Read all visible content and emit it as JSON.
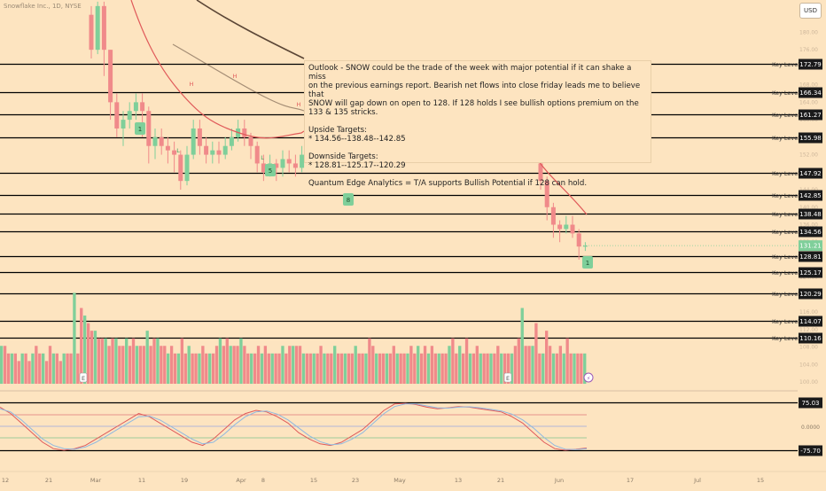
{
  "header": {
    "ticker": "Snowflake Inc., 1D, NYSE",
    "currency_button": "USD"
  },
  "note": {
    "line1": "Outlook - SNOW could be the trade of the week with major potential if it can shake a miss",
    "line2": "on the previous earnings report. Bearish net flows into close friday leads me to believe that",
    "line3": "SNOW will gap down on open to 128. If 128 holds I see bullish options premium on the 133 & 135 stricks.",
    "upside_title": "Upside Targets:",
    "upside_values": "* 134.56--138.48--142.85",
    "downside_title": "Downside Targets:",
    "downside_values": "* 128.81--125.17--120.29",
    "footer": "Quantum Edge Analytics = T/A supports Bullish Potential if 128 can hold."
  },
  "colors": {
    "background": "#fde4c0",
    "up_candle": "#7fcf9a",
    "down_candle": "#f08a8a",
    "ma_fast": "#e05a5a",
    "ma_slow": "#5b4636",
    "key_level_line": "#000000",
    "label_box": "#1a1a1a",
    "last_price_box": "#7fcf9a",
    "osc_upper_band": "#e07a7a",
    "osc_lower_band": "#7fc48e",
    "osc_mid": "#9aa7e0",
    "osc_line_a": "#e05a5a",
    "osc_line_b": "#8fb8e0"
  },
  "chart_data": [
    {
      "type": "candlestick",
      "title": "Snowflake Inc., 1D, NYSE",
      "price_axis": {
        "visible_ticks": [
          180.0,
          176.0,
          168.0,
          164.0,
          160.0,
          152.0,
          148.0,
          144.0,
          140.0,
          136.0,
          132.0,
          124.0,
          116.0,
          112.0,
          108.0,
          104.0,
          100.0
        ],
        "ylim": [
          98,
          186
        ]
      },
      "time_axis": {
        "tick_labels": [
          "12",
          "21",
          "Mar",
          "11",
          "19",
          "Apr",
          "8",
          "15",
          "23",
          "May",
          "13",
          "21",
          "Jun",
          "17",
          "Jul",
          "15"
        ]
      },
      "key_levels": [
        {
          "label": "Key Level",
          "value": 172.79
        },
        {
          "label": "Key Level",
          "value": 166.34
        },
        {
          "label": "Key Level",
          "value": 161.27
        },
        {
          "label": "Key Level",
          "value": 155.98
        },
        {
          "label": "Key Level",
          "value": 147.92
        },
        {
          "label": "Key Level",
          "value": 142.85
        },
        {
          "label": "Key Level",
          "value": 138.48
        },
        {
          "label": "Key Level",
          "value": 134.56
        },
        {
          "label": "Key Level",
          "value": 128.81
        },
        {
          "label": "Key Level",
          "value": 125.17
        },
        {
          "label": "Key Level",
          "value": 120.29
        },
        {
          "label": "Key Level",
          "value": 114.07
        },
        {
          "label": "Key Level",
          "value": 110.16
        }
      ],
      "last_price": 131.21,
      "candles_visible_segments": {
        "feb_to_apr": [
          {
            "o": 184,
            "c": 176,
            "h": 186,
            "l": 174
          },
          {
            "o": 176,
            "c": 186,
            "h": 187,
            "l": 175
          },
          {
            "o": 186,
            "c": 176,
            "h": 187,
            "l": 170
          },
          {
            "o": 176,
            "c": 164,
            "h": 176,
            "l": 160
          },
          {
            "o": 164,
            "c": 158,
            "h": 166,
            "l": 156
          },
          {
            "o": 158,
            "c": 160,
            "h": 162,
            "l": 154
          },
          {
            "o": 160,
            "c": 162,
            "h": 164,
            "l": 158
          },
          {
            "o": 162,
            "c": 164,
            "h": 166,
            "l": 160
          },
          {
            "o": 164,
            "c": 162,
            "h": 166,
            "l": 156
          },
          {
            "o": 162,
            "c": 154,
            "h": 163,
            "l": 150
          },
          {
            "o": 154,
            "c": 156,
            "h": 158,
            "l": 151
          },
          {
            "o": 156,
            "c": 154,
            "h": 158,
            "l": 152
          },
          {
            "o": 154,
            "c": 153,
            "h": 156,
            "l": 150
          },
          {
            "o": 153,
            "c": 152,
            "h": 155,
            "l": 148
          },
          {
            "o": 152,
            "c": 146,
            "h": 153,
            "l": 144
          },
          {
            "o": 146,
            "c": 152,
            "h": 154,
            "l": 145
          },
          {
            "o": 152,
            "c": 158,
            "h": 160,
            "l": 151
          },
          {
            "o": 158,
            "c": 154,
            "h": 160,
            "l": 152
          },
          {
            "o": 154,
            "c": 152,
            "h": 156,
            "l": 150
          },
          {
            "o": 152,
            "c": 153,
            "h": 155,
            "l": 150
          },
          {
            "o": 153,
            "c": 152,
            "h": 155,
            "l": 150
          },
          {
            "o": 152,
            "c": 154,
            "h": 156,
            "l": 151
          },
          {
            "o": 154,
            "c": 156,
            "h": 158,
            "l": 153
          },
          {
            "o": 156,
            "c": 158,
            "h": 160,
            "l": 155
          },
          {
            "o": 158,
            "c": 156,
            "h": 160,
            "l": 154
          },
          {
            "o": 156,
            "c": 154,
            "h": 157,
            "l": 151
          },
          {
            "o": 154,
            "c": 150,
            "h": 155,
            "l": 148
          },
          {
            "o": 150,
            "c": 148,
            "h": 152,
            "l": 146
          },
          {
            "o": 148,
            "c": 150,
            "h": 152,
            "l": 147
          },
          {
            "o": 150,
            "c": 149,
            "h": 151,
            "l": 146
          },
          {
            "o": 149,
            "c": 151,
            "h": 153,
            "l": 147
          },
          {
            "o": 151,
            "c": 150,
            "h": 153,
            "l": 148
          },
          {
            "o": 150,
            "c": 149,
            "h": 152,
            "l": 147
          },
          {
            "o": 149,
            "c": 152,
            "h": 154,
            "l": 148
          },
          {
            "o": 152,
            "c": 156,
            "h": 157,
            "l": 151
          }
        ],
        "may_to_jun": [
          {
            "o": 150,
            "c": 146,
            "h": 151,
            "l": 144
          },
          {
            "o": 146,
            "c": 140,
            "h": 147,
            "l": 137
          },
          {
            "o": 140,
            "c": 136,
            "h": 141,
            "l": 133
          },
          {
            "o": 136,
            "c": 135,
            "h": 137,
            "l": 132
          },
          {
            "o": 135,
            "c": 136,
            "h": 138,
            "l": 134
          },
          {
            "o": 136,
            "c": 134,
            "h": 138,
            "l": 133
          },
          {
            "o": 134,
            "c": 131,
            "h": 135,
            "l": 128
          },
          {
            "o": 131,
            "c": 131.21,
            "h": 132,
            "l": 130
          }
        ]
      },
      "indicators": [
        {
          "name": "MA fast",
          "color": "#e05a5a"
        },
        {
          "name": "MA slow",
          "color": "#5b4636"
        }
      ],
      "annotations": [
        "H",
        "H",
        "H",
        "L",
        "L",
        "1",
        "5",
        "8",
        "1"
      ]
    },
    {
      "type": "bar",
      "title": "",
      "values": [
        5,
        5,
        4,
        4,
        4,
        3,
        4,
        4,
        3,
        4,
        5,
        4,
        4,
        3,
        5,
        4,
        4,
        3,
        4,
        4,
        4,
        12,
        4,
        10,
        9,
        8,
        7,
        7,
        6,
        6,
        6,
        5,
        6,
        6,
        5,
        5,
        6,
        5,
        6,
        5,
        5,
        5,
        7,
        5,
        6,
        6,
        5,
        5,
        4,
        5,
        4,
        4,
        6,
        4,
        5,
        4,
        4,
        4,
        5,
        4,
        4,
        4,
        5,
        6,
        5,
        6,
        5,
        5,
        5,
        6,
        5,
        4,
        4,
        4,
        5,
        4,
        5,
        4,
        4,
        4,
        4,
        5,
        4,
        5,
        5,
        5,
        5,
        4,
        4,
        4,
        4,
        4,
        5,
        4,
        4,
        4,
        5,
        4,
        4,
        4,
        4,
        4,
        5,
        4,
        4,
        4,
        6,
        5,
        4,
        4,
        4,
        4,
        4,
        5,
        4,
        4,
        4,
        4,
        5,
        4,
        5,
        4,
        5,
        4,
        5,
        4,
        4,
        4,
        4,
        5,
        6,
        4,
        5,
        4,
        6,
        4,
        4,
        5,
        4,
        4,
        4,
        4,
        4,
        5,
        4,
        4,
        4,
        4,
        5,
        6,
        10,
        5,
        5,
        5,
        8,
        4,
        4,
        7,
        5,
        4,
        4,
        5,
        4,
        6,
        4,
        4,
        4,
        4,
        4
      ],
      "event_markers": [
        "E",
        "E"
      ]
    },
    {
      "type": "line",
      "title": "",
      "bands": [
        75.03,
        -75.7
      ],
      "ylabels": [
        "0.0000"
      ],
      "series": [
        {
          "values": [
            60,
            40,
            10,
            -20,
            -50,
            -70,
            -75,
            -70,
            -60,
            -40,
            -20,
            0,
            20,
            40,
            30,
            10,
            -10,
            -30,
            -50,
            -60,
            -40,
            -10,
            20,
            40,
            50,
            45,
            30,
            10,
            -20,
            -40,
            -55,
            -60,
            -50,
            -30,
            -10,
            20,
            50,
            70,
            72,
            68,
            60,
            55,
            58,
            62,
            60,
            55,
            50,
            45,
            30,
            10,
            -20,
            -50,
            -70,
            -75,
            -72,
            -68
          ]
        },
        {
          "values": [
            55,
            45,
            20,
            -10,
            -40,
            -60,
            -70,
            -72,
            -65,
            -50,
            -30,
            -10,
            10,
            30,
            32,
            20,
            0,
            -20,
            -40,
            -55,
            -50,
            -25,
            5,
            30,
            45,
            48,
            38,
            20,
            -5,
            -30,
            -48,
            -58,
            -55,
            -40,
            -20,
            10,
            40,
            62,
            70,
            70,
            64,
            58,
            57,
            60,
            61,
            58,
            53,
            48,
            38,
            20,
            -5,
            -35,
            -60,
            -72,
            -73,
            -70
          ]
        }
      ]
    }
  ]
}
